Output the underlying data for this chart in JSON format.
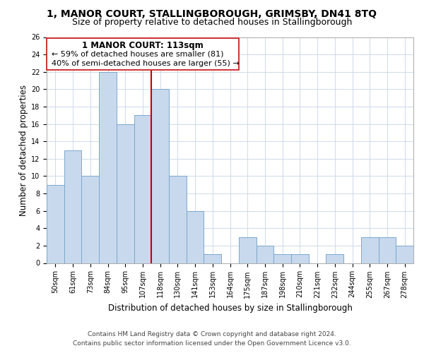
{
  "title": "1, MANOR COURT, STALLINGBOROUGH, GRIMSBY, DN41 8TQ",
  "subtitle": "Size of property relative to detached houses in Stallingborough",
  "xlabel": "Distribution of detached houses by size in Stallingborough",
  "ylabel": "Number of detached properties",
  "bin_labels": [
    "50sqm",
    "61sqm",
    "73sqm",
    "84sqm",
    "95sqm",
    "107sqm",
    "118sqm",
    "130sqm",
    "141sqm",
    "153sqm",
    "164sqm",
    "175sqm",
    "187sqm",
    "198sqm",
    "210sqm",
    "221sqm",
    "232sqm",
    "244sqm",
    "255sqm",
    "267sqm",
    "278sqm"
  ],
  "bar_heights": [
    9,
    13,
    10,
    22,
    16,
    17,
    20,
    10,
    6,
    1,
    0,
    3,
    2,
    1,
    1,
    0,
    1,
    0,
    3,
    3,
    2
  ],
  "bar_color": "#c8d9ee",
  "bar_edge_color": "#7ba7cc",
  "vline_color": "#cc0000",
  "ylim": [
    0,
    26
  ],
  "yticks": [
    0,
    2,
    4,
    6,
    8,
    10,
    12,
    14,
    16,
    18,
    20,
    22,
    24,
    26
  ],
  "annotation_title": "1 MANOR COURT: 113sqm",
  "annotation_line1": "← 59% of detached houses are smaller (81)",
  "annotation_line2": "40% of semi-detached houses are larger (55) →",
  "footer_line1": "Contains HM Land Registry data © Crown copyright and database right 2024.",
  "footer_line2": "Contains public sector information licensed under the Open Government Licence v3.0.",
  "title_fontsize": 10,
  "subtitle_fontsize": 9,
  "xlabel_fontsize": 8.5,
  "ylabel_fontsize": 8.5,
  "tick_fontsize": 7,
  "footer_fontsize": 6.5,
  "annotation_title_fontsize": 8.5,
  "annotation_body_fontsize": 8,
  "grid_color": "#c8d4e8",
  "box_edge_color": "#cc2222",
  "background_color": "#ffffff"
}
